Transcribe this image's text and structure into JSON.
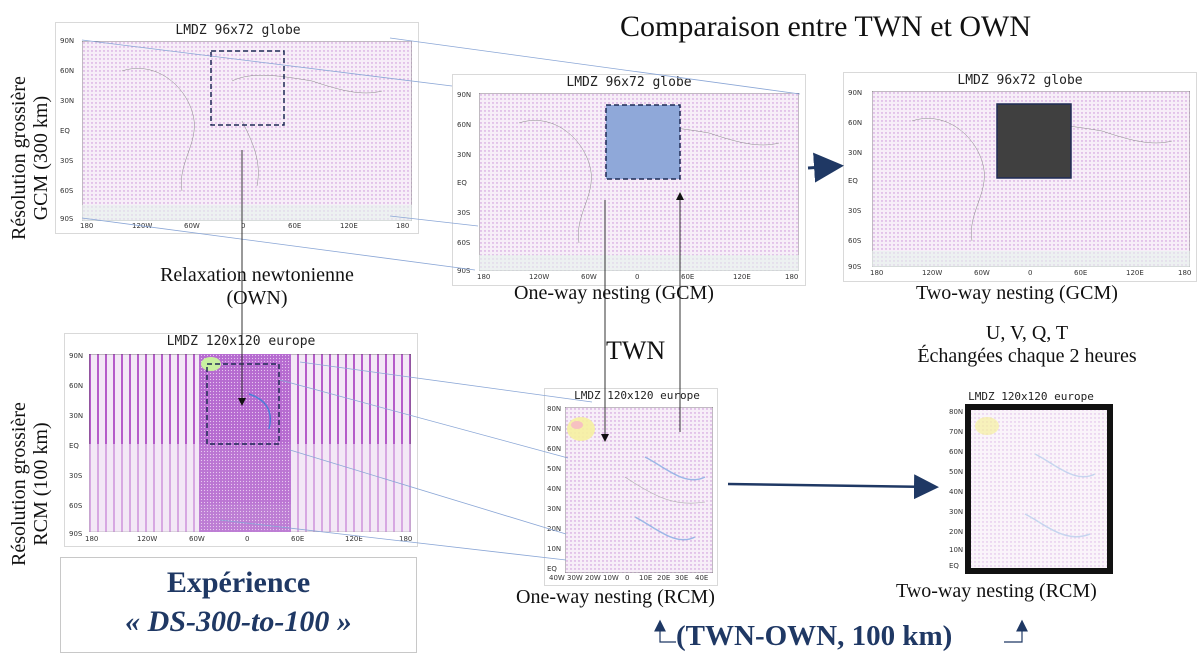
{
  "title": "Comparaison entre TWN et OWN",
  "side_labels": {
    "gcm": [
      "Résolution grossière",
      "GCM (300 km)"
    ],
    "rcm": [
      "Résolution grossière",
      "RCM (100 km)"
    ]
  },
  "maps": {
    "globe_left_title": "LMDZ 96x72 globe",
    "globe_mid_title": "LMDZ 96x72 globe",
    "globe_right_title": "LMDZ 96x72 globe",
    "europe_left_title": "LMDZ 120x120 europe",
    "europe_mid_title": "LMDZ 120x120 europe",
    "europe_right_title": "LMDZ 120x120 europe",
    "lat_ticks_globe": [
      "90N",
      "60N",
      "30N",
      "EQ",
      "30S",
      "60S",
      "90S"
    ],
    "lon_ticks_globe": [
      "180",
      "120W",
      "60W",
      "0",
      "60E",
      "120E",
      "180"
    ],
    "lat_ticks_europe": [
      "80N",
      "70N",
      "60N",
      "50N",
      "40N",
      "30N",
      "20N",
      "10N",
      "EQ"
    ],
    "lon_ticks_europe": [
      "40W",
      "30W",
      "20W",
      "10W",
      "0",
      "10E",
      "20E",
      "30E",
      "40E"
    ]
  },
  "labels": {
    "relaxation_line1": "Relaxation newtonienne",
    "relaxation_line2": "(OWN)",
    "twn": "TWN",
    "oneway_gcm": "One-way nesting (GCM)",
    "twoway_gcm": "Two-way nesting (GCM)",
    "exchange_line1": "U, V, Q, T",
    "exchange_line2": "Échangées chaque 2 heures",
    "oneway_rcm": "One-way nesting (RCM)",
    "twoway_rcm": "Two-way nesting (RCM)",
    "experience_line1": "Expérience",
    "experience_line2": "« DS-300-to-100 »",
    "twn_own": "(TWN-OWN, 100 km)"
  },
  "colors": {
    "navy": "#1f3864",
    "zoom_fill_blue": "#8fa8d9",
    "zoom_fill_dark": "#404040",
    "grid_pink": "#d9a6e6"
  }
}
